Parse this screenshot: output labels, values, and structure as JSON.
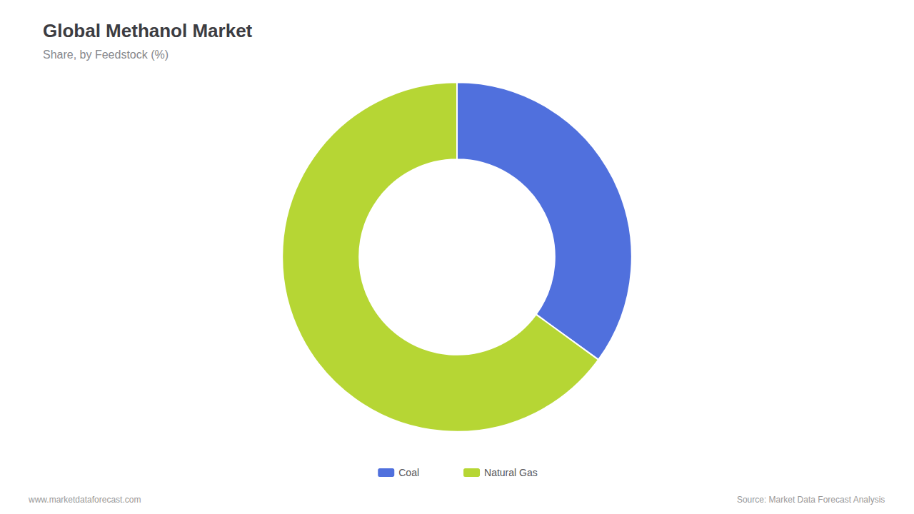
{
  "chart_data": {
    "type": "donut",
    "title": "Global Methanol Market",
    "subtitle": "Share, by Feedstock (%)",
    "categories": [
      "Coal",
      "Natural Gas"
    ],
    "values": [
      35,
      65
    ],
    "legend": "bottom",
    "annotations": [
      "www.marketdataforecast.com",
      "Source: Market Data Forecast Analysis"
    ]
  }
}
